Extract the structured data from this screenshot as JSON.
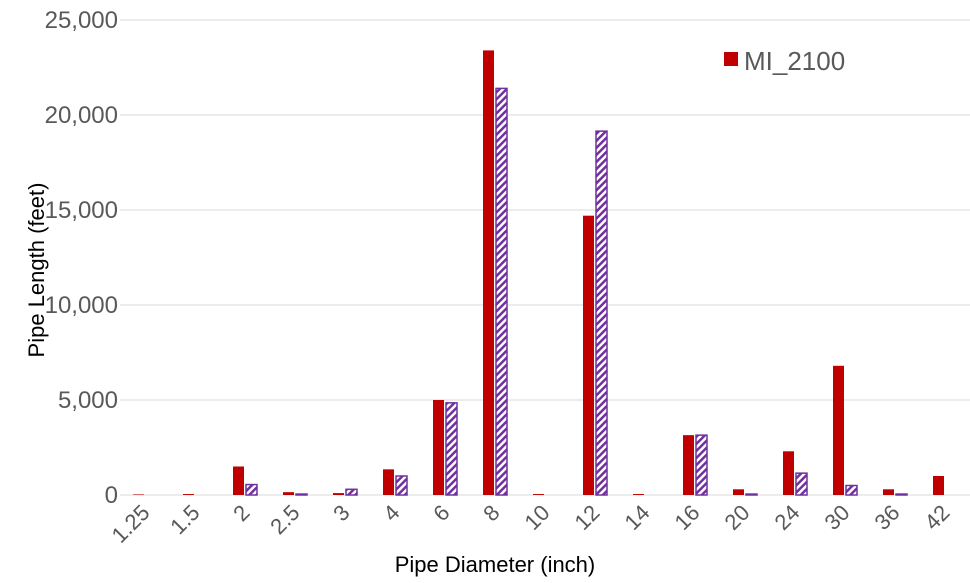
{
  "chart_data": {
    "type": "bar",
    "xlabel": "Pipe Diameter (inch)",
    "ylabel": "Pipe Length (feet)",
    "ylim": [
      0,
      25000
    ],
    "yticks": [
      0,
      5000,
      10000,
      15000,
      20000,
      25000
    ],
    "ytick_labels": [
      "0",
      "5,000",
      "10,000",
      "15,000",
      "20,000",
      "25,000"
    ],
    "grid": true,
    "legend_position": "top-right",
    "categories": [
      "1.25",
      "1.5",
      "2",
      "2.5",
      "3",
      "4",
      "6",
      "8",
      "10",
      "12",
      "14",
      "16",
      "20",
      "24",
      "30",
      "36",
      "42"
    ],
    "series": [
      {
        "name": "MI_2100",
        "color": "#C00000",
        "pattern": "solid",
        "values": [
          30,
          50,
          1500,
          150,
          100,
          1350,
          5000,
          23400,
          50,
          14700,
          50,
          3150,
          300,
          2300,
          6800,
          300,
          1000
        ]
      },
      {
        "color": "#7030A0",
        "pattern": "diagonal-hatch",
        "values": [
          0,
          0,
          550,
          50,
          300,
          1000,
          4850,
          21400,
          0,
          19150,
          0,
          3150,
          50,
          1150,
          500,
          50,
          0
        ]
      }
    ]
  }
}
